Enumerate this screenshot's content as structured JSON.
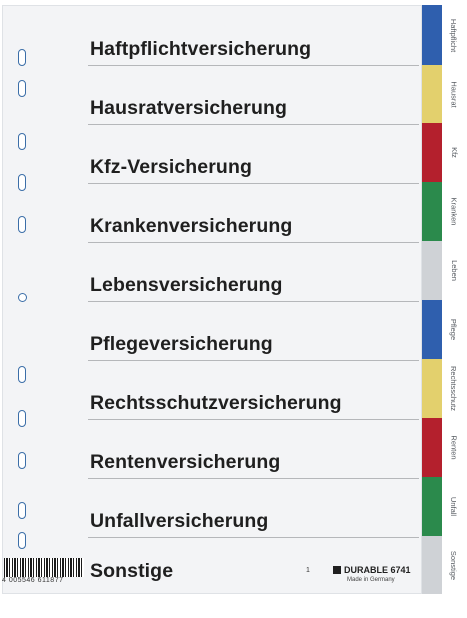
{
  "colors": {
    "blue": "#2f5fae",
    "yellow": "#e3d06d",
    "red": "#b4202d",
    "green": "#2b8a4c",
    "grey": "#cfd2d6",
    "holes": "#3b6ea8"
  },
  "dividers": [
    {
      "label": "Haftpflichtversicherung",
      "tab": "Haftpflicht",
      "color": "blue"
    },
    {
      "label": "Hausratversicherung",
      "tab": "Hausrat",
      "color": "yellow"
    },
    {
      "label": "Kfz-Versicherung",
      "tab": "Kfz",
      "color": "red"
    },
    {
      "label": "Krankenversicherung",
      "tab": "Kranken",
      "color": "green"
    },
    {
      "label": "Lebensversicherung",
      "tab": "Leben",
      "color": "grey"
    },
    {
      "label": "Pflegeversicherung",
      "tab": "Pflege",
      "color": "blue"
    },
    {
      "label": "Rechtsschutzversicherung",
      "tab": "Rechtsschutz",
      "color": "yellow"
    },
    {
      "label": "Rentenversicherung",
      "tab": "Renten",
      "color": "red"
    },
    {
      "label": "Unfallversicherung",
      "tab": "Unfall",
      "color": "green"
    },
    {
      "label": "Sonstige",
      "tab": "Sonstige",
      "color": "grey"
    }
  ],
  "footer": {
    "barcode": "4 005546 611877",
    "page_number": "1",
    "brand": "DURABLE 6741",
    "made_in": "Made in Germany"
  }
}
